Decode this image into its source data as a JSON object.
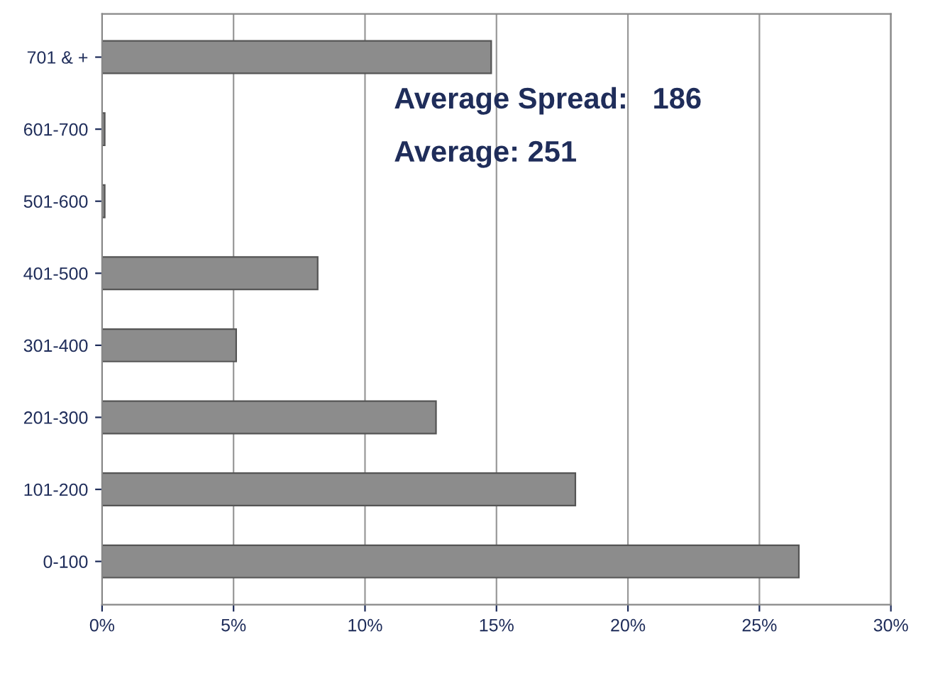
{
  "chart_data": {
    "type": "bar",
    "orientation": "horizontal",
    "categories": [
      "701 & +",
      "601-700",
      "501-600",
      "401-500",
      "301-400",
      "201-300",
      "101-200",
      "0-100"
    ],
    "values": [
      14.8,
      0.1,
      0.1,
      8.2,
      5.1,
      12.7,
      18,
      26.5
    ],
    "color": "#8c8c8c",
    "xlim": [
      0,
      30
    ],
    "xticks": [
      {
        "value": 0,
        "label": "0%"
      },
      {
        "value": 5,
        "label": "5%"
      },
      {
        "value": 10,
        "label": "10%"
      },
      {
        "value": 15,
        "label": "15%"
      },
      {
        "value": 20,
        "label": "20%"
      },
      {
        "value": 25,
        "label": "25%"
      },
      {
        "value": 30,
        "label": "30%"
      }
    ],
    "grid": "x",
    "annotations": [
      "Average Spread:   186",
      "Average: 251"
    ]
  }
}
